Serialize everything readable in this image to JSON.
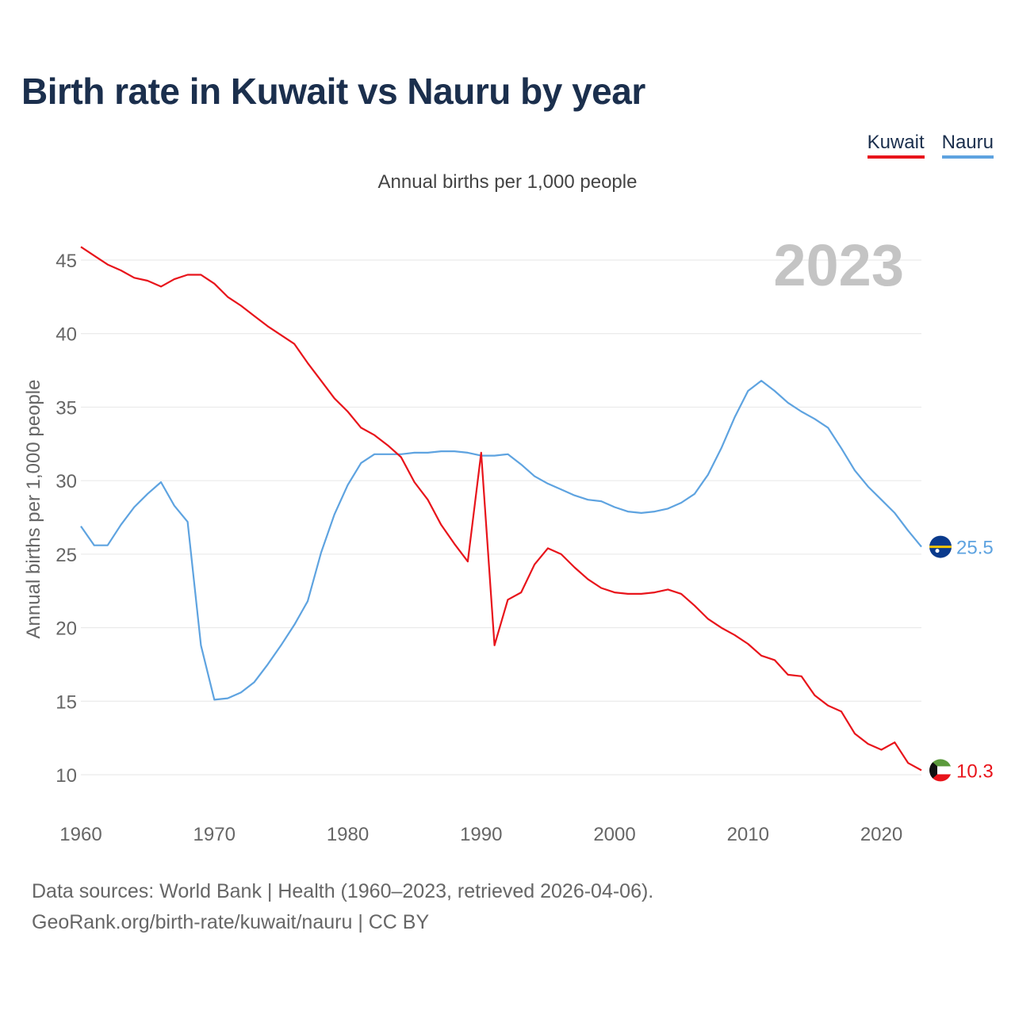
{
  "title": "Birth rate in Kuwait vs Nauru by year",
  "subtitle": "Annual births per 1,000 people",
  "legend": [
    {
      "label": "Kuwait",
      "color": "#e8141b"
    },
    {
      "label": "Nauru",
      "color": "#5ea3e0"
    }
  ],
  "year_label": "2023",
  "source": {
    "line1": "Data sources: World Bank | Health (1960–2023, retrieved 2026-04-06).",
    "line2": "GeoRank.org/birth-rate/kuwait/nauru | CC BY"
  },
  "chart_data": {
    "type": "line",
    "title": "Birth rate in Kuwait vs Nauru by year",
    "xlabel": "",
    "ylabel": "Annual births per 1,000 people",
    "xlim": [
      1960,
      2023
    ],
    "ylim": [
      8,
      47
    ],
    "x_ticks": [
      1960,
      1970,
      1980,
      1990,
      2000,
      2010,
      2020
    ],
    "y_ticks": [
      10,
      15,
      20,
      25,
      30,
      35,
      40,
      45
    ],
    "grid": true,
    "legend_position": "top-right",
    "x": [
      1960,
      1961,
      1962,
      1963,
      1964,
      1965,
      1966,
      1967,
      1968,
      1969,
      1970,
      1971,
      1972,
      1973,
      1974,
      1975,
      1976,
      1977,
      1978,
      1979,
      1980,
      1981,
      1982,
      1983,
      1984,
      1985,
      1986,
      1987,
      1988,
      1989,
      1990,
      1991,
      1992,
      1993,
      1994,
      1995,
      1996,
      1997,
      1998,
      1999,
      2000,
      2001,
      2002,
      2003,
      2004,
      2005,
      2006,
      2007,
      2008,
      2009,
      2010,
      2011,
      2012,
      2013,
      2014,
      2015,
      2016,
      2017,
      2018,
      2019,
      2020,
      2021,
      2022,
      2023
    ],
    "series": [
      {
        "name": "Kuwait",
        "color": "#e8141b",
        "end_label": "10.3",
        "values": [
          45.9,
          45.3,
          44.7,
          44.3,
          43.8,
          43.6,
          43.2,
          43.7,
          44.0,
          44.0,
          43.4,
          42.5,
          41.9,
          41.2,
          40.5,
          39.9,
          39.3,
          38.0,
          36.8,
          35.6,
          34.7,
          33.6,
          33.1,
          32.4,
          31.6,
          29.9,
          28.7,
          27.0,
          25.7,
          24.5,
          31.9,
          18.8,
          21.9,
          22.4,
          24.3,
          25.4,
          25.0,
          24.1,
          23.3,
          22.7,
          22.4,
          22.3,
          22.3,
          22.4,
          22.6,
          22.3,
          21.5,
          20.6,
          20.0,
          19.5,
          18.9,
          18.1,
          17.8,
          16.8,
          16.7,
          15.4,
          14.7,
          14.3,
          12.8,
          12.1,
          11.7,
          12.2,
          10.8,
          10.3
        ]
      },
      {
        "name": "Nauru",
        "color": "#5ea3e0",
        "end_label": "25.5",
        "values": [
          26.9,
          25.6,
          25.6,
          27.0,
          28.2,
          29.1,
          29.9,
          28.3,
          27.2,
          18.8,
          15.1,
          15.2,
          15.6,
          16.3,
          17.5,
          18.8,
          20.2,
          21.8,
          25.1,
          27.7,
          29.7,
          31.2,
          31.8,
          31.8,
          31.8,
          31.9,
          31.9,
          32.0,
          32.0,
          31.9,
          31.7,
          31.7,
          31.8,
          31.1,
          30.3,
          29.8,
          29.4,
          29.0,
          28.7,
          28.6,
          28.2,
          27.9,
          27.8,
          27.9,
          28.1,
          28.5,
          29.1,
          30.4,
          32.2,
          34.3,
          36.1,
          36.8,
          36.1,
          35.3,
          34.7,
          34.2,
          33.6,
          32.2,
          30.7,
          29.6,
          28.7,
          27.8,
          26.6,
          25.5
        ]
      }
    ]
  }
}
